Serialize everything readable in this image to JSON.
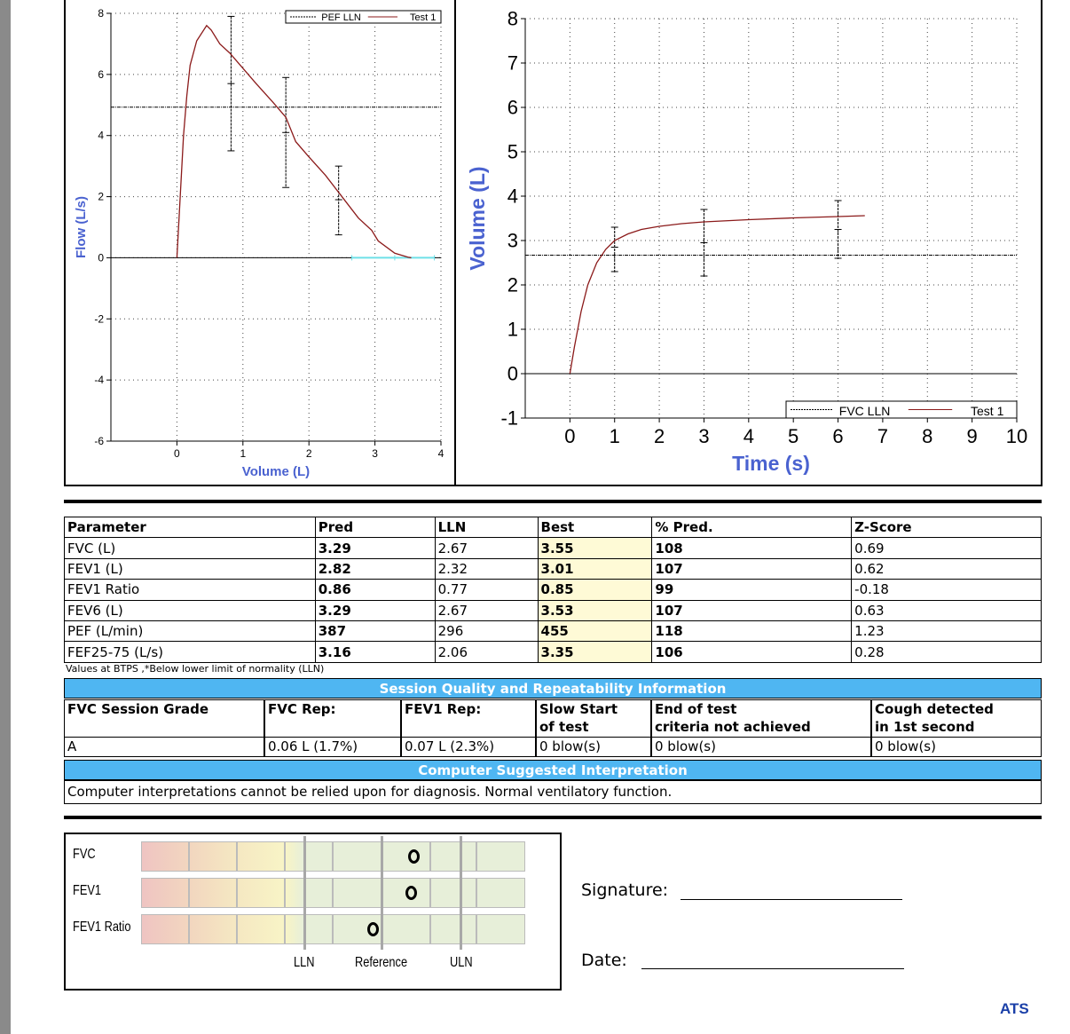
{
  "chart_data": [
    {
      "type": "line",
      "name": "flow-volume",
      "xlabel": "Volume (L)",
      "ylabel": "Flow (L/s)",
      "xlim": [
        -1,
        4
      ],
      "ylim": [
        -6,
        8
      ],
      "xticks": [
        0,
        1,
        2,
        3,
        4
      ],
      "yticks": [
        -6,
        -4,
        -2,
        0,
        2,
        4,
        6,
        8
      ],
      "grid": true,
      "legend": [
        "PEF LLN",
        "Test 1"
      ],
      "legend_position": "top-right",
      "series": [
        {
          "name": "Test 1",
          "color": "#8b1a1a",
          "points": [
            [
              0,
              0
            ],
            [
              0.05,
              2
            ],
            [
              0.1,
              4
            ],
            [
              0.15,
              5.3
            ],
            [
              0.2,
              6.3
            ],
            [
              0.3,
              7.1
            ],
            [
              0.45,
              7.6
            ],
            [
              0.52,
              7.45
            ],
            [
              0.65,
              7.0
            ],
            [
              0.8,
              6.7
            ],
            [
              1,
              6.2
            ],
            [
              1.2,
              5.7
            ],
            [
              1.45,
              5.1
            ],
            [
              1.65,
              4.6
            ],
            [
              1.8,
              3.8
            ],
            [
              2,
              3.3
            ],
            [
              2.25,
              2.7
            ],
            [
              2.5,
              2.0
            ],
            [
              2.75,
              1.3
            ],
            [
              2.95,
              0.9
            ],
            [
              3.05,
              0.55
            ],
            [
              3.3,
              0.15
            ],
            [
              3.5,
              0.02
            ],
            [
              3.55,
              0
            ]
          ]
        }
      ],
      "pef_lln": 4.93,
      "error_bars": [
        {
          "x": 0.82,
          "low": 3.5,
          "mid": 5.7,
          "high": 7.9
        },
        {
          "x": 1.65,
          "low": 2.3,
          "mid": 4.1,
          "high": 5.9
        },
        {
          "x": 2.45,
          "low": 0.75,
          "mid": 1.9,
          "high": 3.0
        }
      ],
      "fvc_range": {
        "low": 2.65,
        "mid": 3.3,
        "high": 3.9
      }
    },
    {
      "type": "line",
      "name": "volume-time",
      "xlabel": "Time (s)",
      "ylabel": "Volume (L)",
      "xlim": [
        -1,
        10
      ],
      "ylim": [
        -1,
        8
      ],
      "xticks": [
        0,
        1,
        2,
        3,
        4,
        5,
        6,
        7,
        8,
        9,
        10
      ],
      "yticks": [
        -1,
        0,
        1,
        2,
        3,
        4,
        5,
        6,
        7,
        8
      ],
      "grid": true,
      "legend": [
        "FVC LLN",
        "Test 1"
      ],
      "legend_position": "bottom-right",
      "series": [
        {
          "name": "Test 1",
          "color": "#8b1a1a",
          "points": [
            [
              0,
              0
            ],
            [
              0.1,
              0.6
            ],
            [
              0.25,
              1.4
            ],
            [
              0.4,
              2.0
            ],
            [
              0.6,
              2.5
            ],
            [
              0.8,
              2.8
            ],
            [
              1,
              3.0
            ],
            [
              1.3,
              3.15
            ],
            [
              1.6,
              3.25
            ],
            [
              2,
              3.32
            ],
            [
              2.5,
              3.38
            ],
            [
              3,
              3.42
            ],
            [
              4,
              3.47
            ],
            [
              5,
              3.51
            ],
            [
              6,
              3.54
            ],
            [
              6.6,
              3.56
            ]
          ]
        }
      ],
      "fvc_lln": 2.67,
      "error_bars": [
        {
          "x": 1,
          "low": 2.3,
          "mid": 2.85,
          "high": 3.3
        },
        {
          "x": 3,
          "low": 2.2,
          "mid": 2.95,
          "high": 3.7
        },
        {
          "x": 6,
          "low": 2.6,
          "mid": 3.25,
          "high": 3.9
        }
      ]
    }
  ],
  "results": {
    "headers": [
      "Parameter",
      "Pred",
      "LLN",
      "Best",
      "% Pred.",
      "Z-Score"
    ],
    "rows": [
      [
        "FVC (L)",
        "3.29",
        "2.67",
        "3.55",
        "108",
        "0.69"
      ],
      [
        "FEV1 (L)",
        "2.82",
        "2.32",
        "3.01",
        "107",
        "0.62"
      ],
      [
        "FEV1 Ratio",
        "0.86",
        "0.77",
        "0.85",
        "99",
        "-0.18"
      ],
      [
        "FEV6 (L)",
        "3.29",
        "2.67",
        "3.53",
        "107",
        "0.63"
      ],
      [
        "PEF (L/min)",
        "387",
        "296",
        "455",
        "118",
        "1.23"
      ],
      [
        "FEF25-75 (L/s)",
        "3.16",
        "2.06",
        "3.35",
        "106",
        "0.28"
      ]
    ],
    "footnote": "Values at BTPS ,*Below lower limit of normality (LLN)"
  },
  "session": {
    "title": "Session Quality and Repeatability Information",
    "headers": [
      "FVC Session Grade",
      "FVC Rep:",
      "FEV1 Rep:",
      "Slow Start\nof test",
      "End of test\ncriteria not achieved",
      "Cough detected\nin 1st second"
    ],
    "values": [
      "A",
      "0.06 L (1.7%)",
      "0.07 L (2.3%)",
      "0 blow(s)",
      "0 blow(s)",
      "0 blow(s)"
    ]
  },
  "interpretation": {
    "title": "Computer Suggested Interpretation",
    "text": "Computer interpretations cannot be relied upon for diagnosis. Normal ventilatory function."
  },
  "zscore": {
    "rows": [
      {
        "label": "FVC",
        "z": 0.69
      },
      {
        "label": "FEV1",
        "z": 0.62
      },
      {
        "label": "FEV1 Ratio",
        "z": -0.18
      }
    ],
    "axis_labels": [
      "LLN",
      "Reference",
      "ULN"
    ]
  },
  "signature": {
    "signature_label": "Signature:",
    "date_label": "Date:"
  },
  "logo": "ATS"
}
